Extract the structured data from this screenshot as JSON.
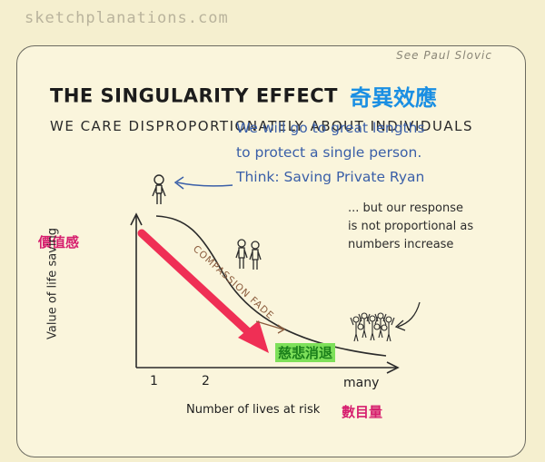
{
  "site": "sketchplanations.com",
  "credit": "See Paul Slovic",
  "title": "THE SINGULARITY EFFECT",
  "title_cjk": "奇異效應",
  "subtitle": "WE CARE DISPROPORTIONATELY ABOUT INDIVIDUALS",
  "note_top": [
    "We will go to great lengths",
    "to protect a single person.",
    "Think: Saving Private Ryan"
  ],
  "note_right": [
    "... but our response",
    "is not proportional as",
    "numbers increase"
  ],
  "y_axis_label": "Value of life saving",
  "y_axis_label_cjk": "價值感",
  "x_axis_label": "Number of lives at risk",
  "x_axis_label_cjk": "數目量",
  "x_ticks": [
    "1",
    "2",
    "many"
  ],
  "arrow_label": "COMPASSION FADE",
  "arrow_label_cjk": "慈悲消退",
  "colors": {
    "accent_blue": "#1a8fe3",
    "accent_red": "#d61e6e",
    "arrow": "#ef2f55",
    "highlight_green": "#7ee05a"
  }
}
